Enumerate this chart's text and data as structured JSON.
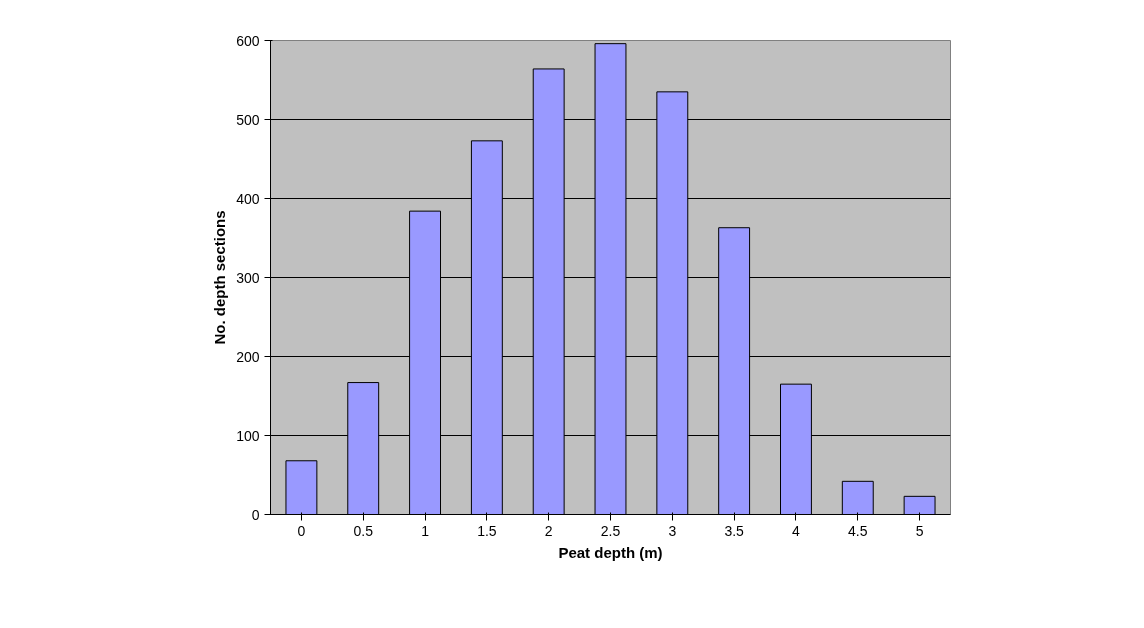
{
  "chart_data": {
    "type": "bar",
    "xlabel": "Peat depth (m)",
    "ylabel": "No. depth sections",
    "categories": [
      "0",
      "0.5",
      "1",
      "1.5",
      "2",
      "2.5",
      "3",
      "3.5",
      "4",
      "4.5",
      "5"
    ],
    "values": [
      68,
      167,
      384,
      473,
      564,
      596,
      535,
      363,
      165,
      42,
      23
    ],
    "color": "#9999ff",
    "ylim": [
      0,
      600
    ],
    "yticks": [
      0,
      100,
      200,
      300,
      400,
      500,
      600
    ],
    "grid": "y"
  }
}
